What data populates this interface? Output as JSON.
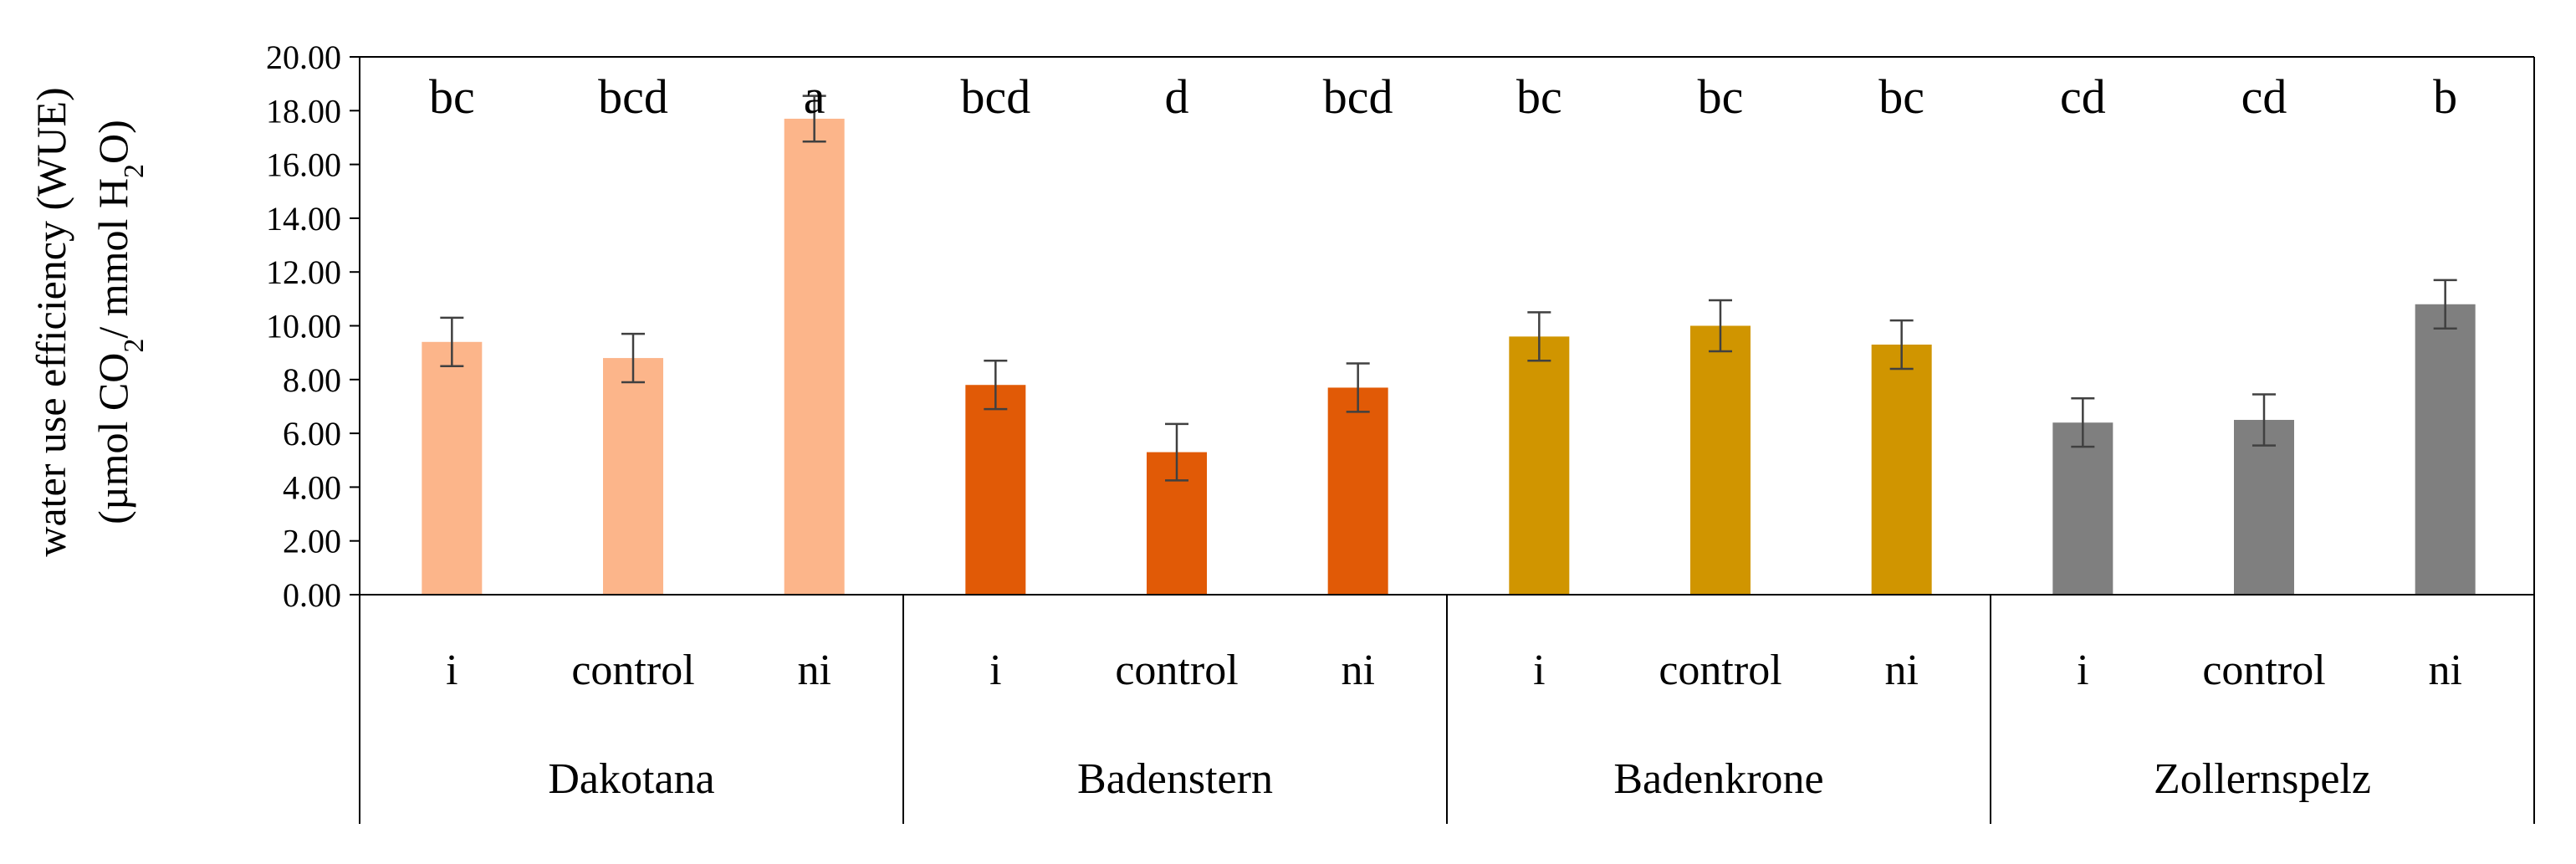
{
  "chart_data": {
    "type": "bar",
    "ylabel_line1": "water use efficiency  (WUE)",
    "ylabel_line2_parts": [
      "(µmol CO",
      "2",
      "/ mmol H",
      "2",
      "O)"
    ],
    "ylim": [
      0,
      20
    ],
    "yticks": [
      "0.00",
      "2.00",
      "4.00",
      "6.00",
      "8.00",
      "10.00",
      "12.00",
      "14.00",
      "16.00",
      "18.00",
      "20.00"
    ],
    "grid": false,
    "legend": "none",
    "groups": [
      {
        "name": "Dakotana",
        "color": "#FCB58A"
      },
      {
        "name": "Badenstern",
        "color": "#E15A06"
      },
      {
        "name": "Badenkrone",
        "color": "#D09500"
      },
      {
        "name": "Zollernspelz",
        "color": "#7F7F7F"
      }
    ],
    "bars": [
      {
        "group": 0,
        "category": "i",
        "value": 9.4,
        "error": 0.9,
        "sig": "bc"
      },
      {
        "group": 0,
        "category": "control",
        "value": 8.8,
        "error": 0.9,
        "sig": "bcd"
      },
      {
        "group": 0,
        "category": "ni",
        "value": 17.7,
        "error": 0.85,
        "sig": "a"
      },
      {
        "group": 1,
        "category": "i",
        "value": 7.8,
        "error": 0.9,
        "sig": "bcd"
      },
      {
        "group": 1,
        "category": "control",
        "value": 5.3,
        "error": 1.05,
        "sig": "d"
      },
      {
        "group": 1,
        "category": "ni",
        "value": 7.7,
        "error": 0.9,
        "sig": "bcd"
      },
      {
        "group": 2,
        "category": "i",
        "value": 9.6,
        "error": 0.9,
        "sig": "bc"
      },
      {
        "group": 2,
        "category": "control",
        "value": 10.0,
        "error": 0.95,
        "sig": "bc"
      },
      {
        "group": 2,
        "category": "ni",
        "value": 9.3,
        "error": 0.9,
        "sig": "bc"
      },
      {
        "group": 3,
        "category": "i",
        "value": 6.4,
        "error": 0.9,
        "sig": "cd"
      },
      {
        "group": 3,
        "category": "control",
        "value": 6.5,
        "error": 0.95,
        "sig": "cd"
      },
      {
        "group": 3,
        "category": "ni",
        "value": 10.8,
        "error": 0.9,
        "sig": "b"
      }
    ]
  }
}
